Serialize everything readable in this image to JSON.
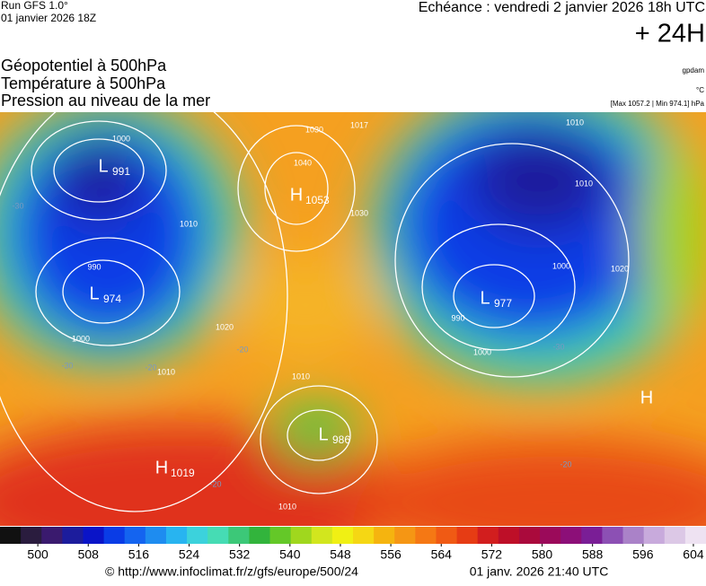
{
  "header": {
    "run": "Run GFS 1.0°",
    "run_date": "01 janvier 2026 18Z",
    "valid": "Echéance : vendredi 2 janvier 2026 18h UTC",
    "lead": "+ 24H",
    "fields": [
      "Géopotentiel à 500hPa",
      "Température à 500hPa",
      "Pression au niveau de la mer"
    ],
    "unit_geo": "gpdam",
    "unit_temp": "°C",
    "extremes": "[Max 1057.2 | Min 974.1] hPa"
  },
  "map": {
    "centers": [
      {
        "symbol": "L",
        "pressure": 991
      },
      {
        "symbol": "L",
        "pressure": 974
      },
      {
        "symbol": "H",
        "pressure": 1053
      },
      {
        "symbol": "L",
        "pressure": 977
      },
      {
        "symbol": "L",
        "pressure": 986
      },
      {
        "symbol": "H",
        "pressure": 1019
      },
      {
        "symbol": "H"
      }
    ],
    "isobar_labels": [
      1000,
      990,
      1000,
      1010,
      1030,
      1040,
      1030,
      1017,
      1010,
      1010,
      1020,
      1000,
      1000,
      990,
      1010,
      1010,
      1010,
      1020
    ],
    "temp_labels": [
      -30,
      -30,
      -20,
      -20,
      -20,
      -30,
      -20
    ]
  },
  "colorbar": {
    "ticks": [
      500,
      508,
      516,
      524,
      532,
      540,
      548,
      556,
      564,
      572,
      580,
      588,
      596,
      604
    ],
    "range": [
      494,
      606
    ],
    "colors": [
      "#111111",
      "#2a1c3e",
      "#3a1a6e",
      "#1c1c9c",
      "#0a14c8",
      "#0a3ce6",
      "#1464f0",
      "#1e8cf0",
      "#28b4f0",
      "#3cd2dc",
      "#46dcb4",
      "#3cc878",
      "#32b43c",
      "#64c828",
      "#a0d71e",
      "#d2e61e",
      "#f0f014",
      "#f5d714",
      "#f5b40f",
      "#f59614",
      "#f57814",
      "#f05a14",
      "#e63c14",
      "#d21e1e",
      "#be0f28",
      "#aa0a3c",
      "#9b0a5a",
      "#8c0f78",
      "#7a1e96",
      "#8c50b4",
      "#aa82c8",
      "#c8aadc",
      "#dcc8e6",
      "#eee2f2"
    ]
  },
  "footer": {
    "url": "© http://www.infoclimat.fr/z/gfs/europe/500/24",
    "generated": "01 janv. 2026 21:40 UTC"
  }
}
